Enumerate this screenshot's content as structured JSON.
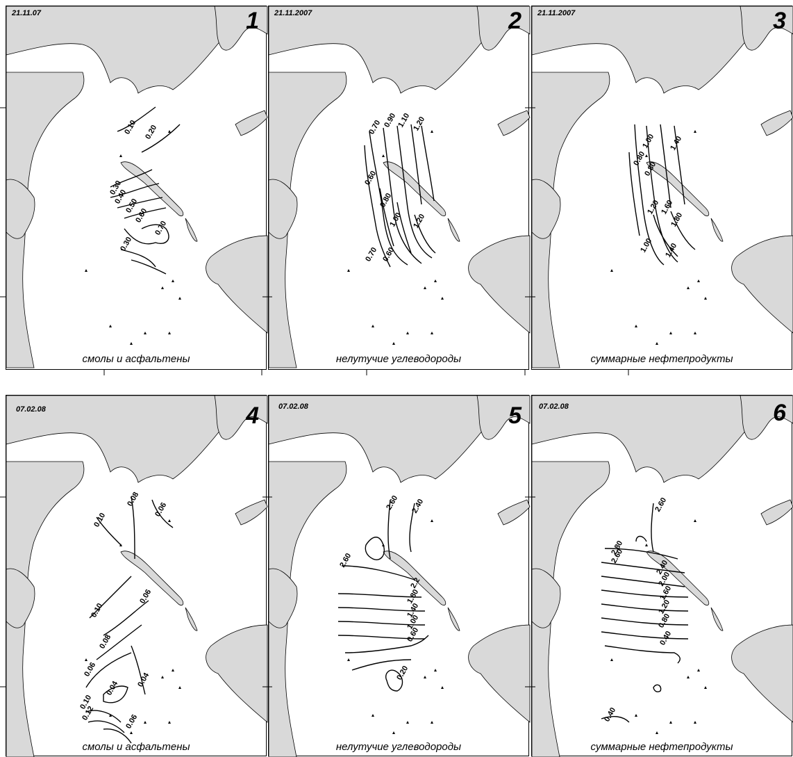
{
  "panels": [
    {
      "date": "21.11.07",
      "number": "1",
      "caption": "смолы и асфальтены",
      "contour_labels": [
        "0.10",
        "0.20",
        "0.30",
        "0.40",
        "0.50",
        "0.60",
        "0.70",
        "0.30"
      ]
    },
    {
      "date": "21.11.2007",
      "number": "2",
      "caption": "нелутучие углеводороды",
      "contour_labels": [
        "0.70",
        "0.90",
        "1.10",
        "1.20",
        "0.60",
        "0.80",
        "1.00",
        "1.20",
        "0.70",
        "0.60"
      ]
    },
    {
      "date": "21.11.2007",
      "number": "3",
      "caption": "суммарные нефтепродукты",
      "contour_labels": [
        "1.00",
        "1.40",
        "0.80",
        "0.80",
        "1.20",
        "1.60",
        "1.80",
        "1.00",
        "1.40"
      ]
    },
    {
      "date": "07.02.08",
      "number": "4",
      "caption": "смолы и асфальтены",
      "contour_labels": [
        "0.08",
        "0.10",
        "0.06",
        "0.10",
        "0.06",
        "0.08",
        "0.06",
        "0.04",
        "0.04",
        "0.10",
        "0.12",
        "0.06"
      ]
    },
    {
      "date": "07.02.08",
      "number": "5",
      "caption": "нелутучие углеводороды",
      "contour_labels": [
        "2.60",
        "2.40",
        "2.60",
        "2.2",
        "1.80",
        "1.40",
        "1.00",
        "0.60",
        "0.20"
      ]
    },
    {
      "date": "07.02.08",
      "number": "6",
      "caption": "суммарные нефтепродукты",
      "contour_labels": [
        "2.60",
        "2.80",
        "2.60",
        "2.40",
        "2.00",
        "1.60",
        "1.20",
        "0.80",
        "0.40",
        "0.40"
      ]
    }
  ],
  "colors": {
    "land": "#d9d9d9",
    "water": "#ffffff",
    "line": "#000000"
  }
}
